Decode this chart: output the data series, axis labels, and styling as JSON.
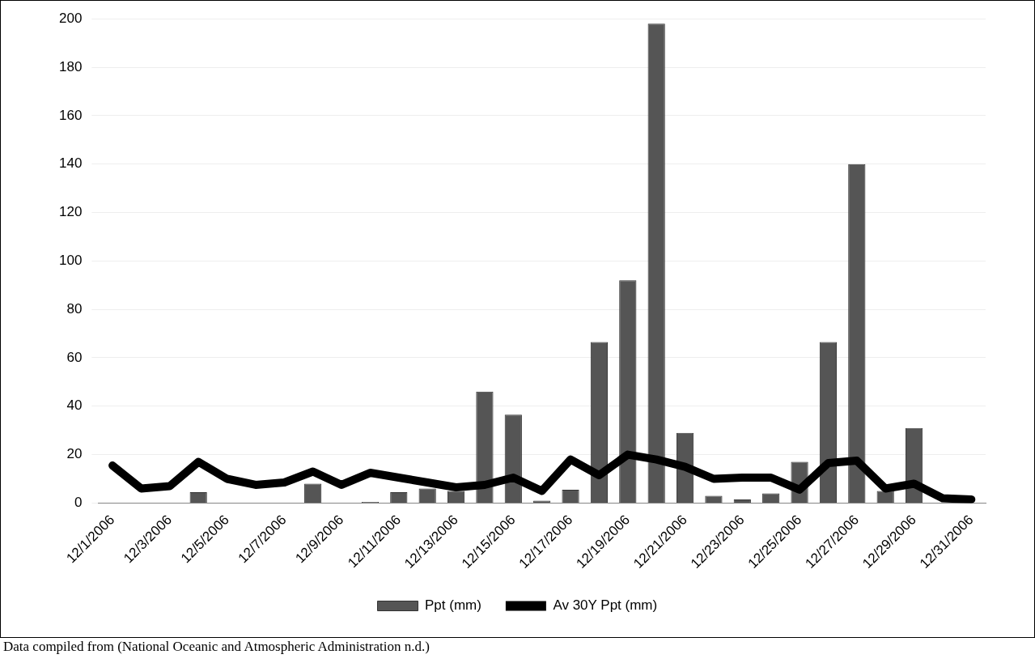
{
  "chart_data": {
    "type": "bar",
    "categories": [
      "12/1/2006",
      null,
      "12/3/2006",
      null,
      "12/5/2006",
      null,
      "12/7/2006",
      null,
      "12/9/2006",
      null,
      "12/11/2006",
      null,
      "12/13/2006",
      null,
      "12/15/2006",
      null,
      "12/17/2006",
      null,
      "12/19/2006",
      null,
      "12/21/2006",
      null,
      "12/23/2006",
      null,
      "12/25/2006",
      null,
      "12/27/2006",
      null,
      "12/29/2006",
      null,
      "12/31/2006"
    ],
    "series": [
      {
        "name": "Ppt (mm)",
        "color": "#555555",
        "values": [
          0,
          0,
          0,
          4.5,
          0,
          0,
          0,
          8,
          0,
          0.5,
          4.5,
          6,
          5,
          46,
          36.5,
          1,
          5.5,
          66.5,
          92,
          198,
          29,
          3,
          1.5,
          4,
          17,
          66.5,
          140,
          5,
          31,
          0,
          0
        ]
      },
      {
        "name": "Av 30Y Ppt (mm)",
        "type": "line",
        "color": "#000000",
        "values": [
          15.5,
          6,
          7,
          17,
          10,
          7.5,
          8.5,
          13,
          7.5,
          12.5,
          10.5,
          8.5,
          6.5,
          7.5,
          10.5,
          5,
          18,
          11.5,
          20,
          18,
          15,
          10,
          10.5,
          10.5,
          5.5,
          16.5,
          17.5,
          6,
          8,
          2,
          1.5
        ]
      }
    ],
    "ylim": [
      0,
      200
    ],
    "yticks": [
      0,
      20,
      40,
      60,
      80,
      100,
      120,
      140,
      160,
      180,
      200
    ],
    "grid": "y",
    "legend": "bottom",
    "marker": "none",
    "annotations": [
      "Data compiled from (National Oceanic and Atmospheric Administration n.d.)"
    ]
  }
}
